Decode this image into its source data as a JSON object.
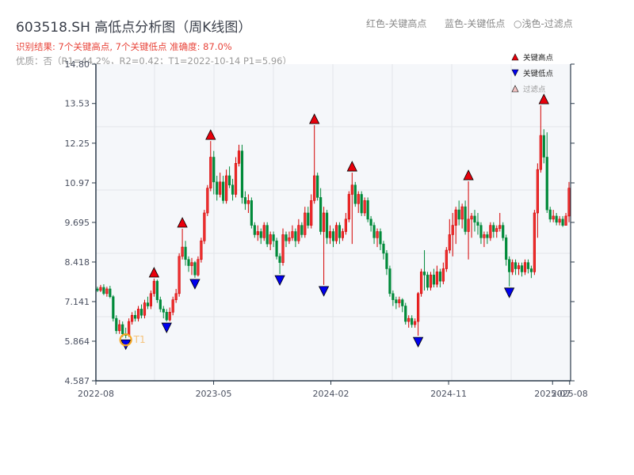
{
  "header": {
    "title": "603518.SH 高低点分析图（周K线图）",
    "result_line": "识别结果: 7个关键高点, 7个关键低点  准确度: 87.0%",
    "quality_line": "优质：否（R1=44.2%，R2=0.42；T1=2022-10-14 P1=5.96）",
    "legend_text": {
      "red": "红色-关键高点",
      "blue": "蓝色-关键低点",
      "light": "○浅色-过滤点"
    }
  },
  "legend": {
    "items": [
      {
        "label": "关键高点",
        "marker": "triangle-up",
        "color": "#e8000b"
      },
      {
        "label": "关键低点",
        "marker": "triangle-down",
        "color": "#0000ee"
      },
      {
        "label": "过滤点",
        "marker": "triangle-up-light",
        "color": "#f4c4c4"
      }
    ]
  },
  "colors": {
    "up": "#d40000",
    "down": "#008a3a",
    "high_marker": "#e8000b",
    "low_marker": "#0000ee",
    "t1_circle": "#f5a623",
    "plot_bg": "#f5f7fa",
    "grid": "#e2e5ea",
    "axis": "#2b3a4a"
  },
  "annotation": {
    "label": "T1",
    "date": "2022-10-14",
    "price": 5.96
  },
  "chart_data": {
    "type": "candlestick",
    "title": "603518.SH 高低点分析图（周K线图）",
    "xlabel": "",
    "ylabel": "",
    "ylim": [
      4.587,
      14.8
    ],
    "yticks": [
      "4.587",
      "5.864",
      "7.141",
      "8.418",
      "9.695",
      "10.97",
      "12.25",
      "13.53",
      "14.80"
    ],
    "ytick_values": [
      4.587,
      5.864,
      7.141,
      8.418,
      9.695,
      10.97,
      12.25,
      13.53,
      14.8
    ],
    "xticks": [
      "2022-08",
      "2023-05",
      "2024-02",
      "2024-11",
      "2025-07",
      "2025-08"
    ],
    "xtick_pos": [
      0.0,
      0.248,
      0.495,
      0.743,
      0.962,
      0.998
    ],
    "grid": true,
    "legend_position": "upper right",
    "candles_ohlc_note": "weekly candles, [open, close, high, low], estimated from pixels",
    "candles": [
      [
        7.55,
        7.5,
        7.62,
        7.45
      ],
      [
        7.5,
        7.6,
        7.68,
        7.45
      ],
      [
        7.6,
        7.4,
        7.7,
        7.35
      ],
      [
        7.4,
        7.55,
        7.62,
        7.3
      ],
      [
        7.55,
        7.3,
        7.65,
        7.25
      ],
      [
        7.3,
        6.6,
        7.35,
        6.5
      ],
      [
        6.6,
        6.2,
        6.7,
        6.1
      ],
      [
        6.2,
        6.4,
        6.55,
        6.1
      ],
      [
        6.4,
        6.1,
        6.5,
        6.0
      ],
      [
        6.1,
        6.05,
        6.3,
        5.96
      ],
      [
        6.05,
        6.5,
        6.6,
        6.0
      ],
      [
        6.5,
        6.7,
        6.8,
        6.4
      ],
      [
        6.7,
        6.6,
        6.85,
        6.5
      ],
      [
        6.6,
        6.9,
        7.0,
        6.5
      ],
      [
        6.9,
        6.7,
        7.05,
        6.6
      ],
      [
        6.7,
        7.1,
        7.2,
        6.6
      ],
      [
        7.1,
        7.0,
        7.3,
        6.9
      ],
      [
        7.0,
        7.4,
        7.5,
        6.9
      ],
      [
        7.4,
        7.8,
        7.88,
        7.3
      ],
      [
        7.8,
        7.2,
        7.85,
        7.1
      ],
      [
        7.2,
        6.9,
        7.3,
        6.8
      ],
      [
        6.9,
        6.8,
        7.0,
        6.6
      ],
      [
        6.8,
        6.55,
        6.9,
        6.5
      ],
      [
        6.55,
        6.8,
        6.95,
        6.5
      ],
      [
        6.8,
        7.2,
        7.3,
        6.7
      ],
      [
        7.2,
        7.4,
        7.55,
        7.1
      ],
      [
        7.4,
        8.6,
        8.7,
        7.3
      ],
      [
        8.6,
        8.9,
        9.49,
        8.5
      ],
      [
        8.9,
        8.5,
        9.1,
        8.3
      ],
      [
        8.5,
        8.3,
        8.6,
        8.1
      ],
      [
        8.3,
        8.4,
        8.55,
        8.0
      ],
      [
        8.4,
        8.0,
        8.45,
        7.91
      ],
      [
        8.0,
        8.5,
        8.6,
        7.95
      ],
      [
        8.5,
        9.1,
        9.2,
        8.4
      ],
      [
        9.1,
        10.0,
        10.1,
        9.0
      ],
      [
        10.0,
        10.8,
        10.9,
        9.9
      ],
      [
        10.8,
        11.8,
        12.32,
        10.7
      ],
      [
        11.8,
        11.0,
        12.0,
        10.6
      ],
      [
        11.0,
        10.6,
        11.2,
        10.4
      ],
      [
        10.6,
        11.0,
        11.3,
        10.5
      ],
      [
        11.0,
        10.4,
        11.2,
        10.3
      ],
      [
        10.4,
        11.2,
        11.4,
        10.3
      ],
      [
        11.2,
        10.9,
        11.5,
        10.8
      ],
      [
        10.9,
        10.6,
        11.1,
        10.4
      ],
      [
        10.6,
        11.6,
        11.8,
        10.5
      ],
      [
        11.6,
        12.0,
        12.2,
        11.5
      ],
      [
        12.0,
        10.5,
        12.2,
        10.3
      ],
      [
        10.5,
        10.3,
        10.7,
        10.1
      ],
      [
        10.3,
        10.4,
        10.6,
        10.0
      ],
      [
        10.4,
        9.6,
        10.5,
        9.5
      ],
      [
        9.6,
        9.3,
        9.7,
        9.2
      ],
      [
        9.3,
        9.4,
        9.6,
        9.1
      ],
      [
        9.4,
        9.2,
        9.5,
        9.0
      ],
      [
        9.2,
        9.6,
        9.7,
        9.1
      ],
      [
        9.6,
        9.0,
        9.7,
        8.9
      ],
      [
        9.0,
        9.3,
        9.4,
        8.8
      ],
      [
        9.3,
        9.1,
        9.4,
        8.9
      ],
      [
        9.1,
        8.6,
        9.2,
        8.5
      ],
      [
        8.6,
        8.4,
        8.7,
        8.03
      ],
      [
        8.4,
        9.3,
        9.5,
        8.3
      ],
      [
        9.3,
        9.1,
        9.4,
        8.9
      ],
      [
        9.1,
        9.2,
        9.4,
        9.0
      ],
      [
        9.2,
        9.4,
        9.6,
        9.1
      ],
      [
        9.4,
        9.1,
        9.5,
        8.9
      ],
      [
        9.1,
        9.6,
        9.8,
        9.0
      ],
      [
        9.6,
        9.3,
        9.7,
        9.2
      ],
      [
        9.3,
        10.0,
        10.2,
        9.2
      ],
      [
        10.0,
        9.6,
        10.2,
        9.5
      ],
      [
        9.6,
        10.4,
        10.6,
        9.5
      ],
      [
        10.4,
        11.2,
        12.83,
        10.3
      ],
      [
        11.2,
        10.5,
        11.3,
        10.4
      ],
      [
        10.5,
        9.4,
        10.8,
        9.3
      ],
      [
        9.4,
        10.0,
        10.2,
        7.68
      ],
      [
        10.0,
        9.2,
        10.1,
        9.0
      ],
      [
        9.2,
        9.4,
        9.6,
        9.0
      ],
      [
        9.4,
        9.1,
        9.5,
        8.9
      ],
      [
        9.1,
        9.6,
        9.7,
        9.0
      ],
      [
        9.6,
        9.2,
        9.7,
        9.0
      ],
      [
        9.2,
        9.4,
        9.5,
        9.1
      ],
      [
        9.4,
        9.8,
        10.0,
        9.3
      ],
      [
        9.8,
        10.6,
        10.7,
        9.7
      ],
      [
        10.6,
        10.9,
        11.3,
        9.0
      ],
      [
        10.9,
        10.3,
        11.0,
        10.2
      ],
      [
        10.3,
        10.6,
        10.7,
        10.0
      ],
      [
        10.6,
        10.0,
        10.7,
        9.9
      ],
      [
        10.0,
        10.4,
        10.5,
        9.9
      ],
      [
        10.4,
        9.8,
        10.5,
        9.7
      ],
      [
        9.8,
        9.6,
        9.9,
        9.4
      ],
      [
        9.6,
        9.2,
        9.7,
        9.0
      ],
      [
        9.2,
        9.4,
        9.5,
        8.9
      ],
      [
        9.4,
        9.0,
        9.5,
        8.8
      ],
      [
        9.0,
        8.7,
        9.1,
        8.5
      ],
      [
        8.7,
        8.2,
        8.8,
        8.0
      ],
      [
        8.2,
        7.4,
        8.3,
        7.3
      ],
      [
        7.4,
        7.2,
        7.5,
        7.0
      ],
      [
        7.2,
        7.1,
        7.3,
        6.9
      ],
      [
        7.1,
        7.2,
        7.3,
        6.95
      ],
      [
        7.2,
        7.0,
        7.25,
        6.8
      ],
      [
        7.0,
        6.5,
        7.1,
        6.4
      ],
      [
        6.5,
        6.6,
        6.7,
        6.3
      ],
      [
        6.6,
        6.4,
        6.7,
        6.3
      ],
      [
        6.4,
        6.5,
        6.6,
        6.3
      ],
      [
        6.5,
        7.4,
        7.45,
        6.04
      ],
      [
        7.4,
        8.1,
        8.2,
        7.3
      ],
      [
        8.1,
        8.0,
        8.8,
        7.5
      ],
      [
        8.0,
        7.6,
        8.1,
        7.5
      ],
      [
        7.6,
        8.0,
        8.1,
        7.5
      ],
      [
        8.0,
        7.7,
        8.2,
        7.6
      ],
      [
        7.7,
        8.1,
        8.3,
        7.6
      ],
      [
        8.1,
        7.8,
        8.2,
        7.6
      ],
      [
        7.8,
        8.2,
        8.4,
        7.7
      ],
      [
        8.2,
        8.8,
        8.9,
        8.1
      ],
      [
        8.8,
        9.3,
        9.8,
        8.7
      ],
      [
        9.3,
        9.6,
        10.0,
        8.6
      ],
      [
        9.6,
        10.1,
        10.2,
        9.0
      ],
      [
        10.1,
        9.8,
        10.4,
        9.6
      ],
      [
        9.8,
        10.2,
        10.3,
        9.5
      ],
      [
        10.2,
        9.4,
        10.4,
        9.3
      ],
      [
        9.4,
        9.8,
        11.02,
        8.5
      ],
      [
        9.8,
        9.9,
        10.0,
        9.2
      ],
      [
        9.9,
        9.7,
        10.1,
        9.4
      ],
      [
        9.7,
        9.6,
        10.0,
        9.3
      ],
      [
        9.6,
        9.2,
        9.7,
        9.0
      ],
      [
        9.2,
        9.3,
        9.4,
        8.9
      ],
      [
        9.3,
        9.2,
        9.4,
        9.0
      ],
      [
        9.2,
        9.6,
        9.7,
        9.1
      ],
      [
        9.6,
        9.4,
        9.7,
        9.2
      ],
      [
        9.4,
        9.5,
        9.6,
        9.2
      ],
      [
        9.5,
        9.6,
        10.0,
        9.4
      ],
      [
        9.6,
        9.2,
        9.7,
        9.1
      ],
      [
        9.2,
        8.5,
        9.3,
        8.3
      ],
      [
        8.5,
        8.1,
        8.6,
        7.63
      ],
      [
        8.1,
        8.4,
        8.5,
        8.0
      ],
      [
        8.4,
        8.2,
        8.5,
        8.0
      ],
      [
        8.2,
        8.3,
        8.4,
        8.0
      ],
      [
        8.3,
        8.1,
        8.4,
        7.95
      ],
      [
        8.1,
        8.4,
        8.5,
        8.0
      ],
      [
        8.4,
        8.2,
        8.5,
        8.05
      ],
      [
        8.2,
        8.1,
        8.3,
        7.9
      ],
      [
        8.1,
        10.0,
        10.1,
        8.0
      ],
      [
        10.0,
        11.4,
        11.6,
        9.2
      ],
      [
        11.4,
        12.5,
        13.47,
        11.3
      ],
      [
        12.5,
        11.8,
        12.7,
        11.6
      ],
      [
        11.8,
        10.1,
        12.6,
        10.0
      ],
      [
        10.1,
        9.8,
        10.2,
        9.7
      ],
      [
        9.8,
        9.9,
        10.1,
        9.7
      ],
      [
        9.9,
        9.7,
        10.0,
        9.6
      ],
      [
        9.7,
        9.8,
        9.9,
        9.6
      ],
      [
        9.8,
        9.6,
        9.9,
        9.55
      ],
      [
        9.6,
        9.9,
        10.0,
        9.6
      ],
      [
        9.9,
        10.8,
        11.0,
        9.7
      ]
    ],
    "key_highs": [
      {
        "index": 18,
        "price": 7.88
      },
      {
        "index": 27,
        "price": 9.49
      },
      {
        "index": 36,
        "price": 12.32
      },
      {
        "index": 69,
        "price": 12.83
      },
      {
        "index": 81,
        "price": 11.3
      },
      {
        "index": 118,
        "price": 11.02
      },
      {
        "index": 142,
        "price": 13.47
      }
    ],
    "key_lows": [
      {
        "index": 9,
        "price": 5.96
      },
      {
        "index": 22,
        "price": 6.5
      },
      {
        "index": 31,
        "price": 7.91
      },
      {
        "index": 58,
        "price": 8.03
      },
      {
        "index": 72,
        "price": 7.68
      },
      {
        "index": 102,
        "price": 6.04
      },
      {
        "index": 131,
        "price": 7.63
      }
    ]
  }
}
